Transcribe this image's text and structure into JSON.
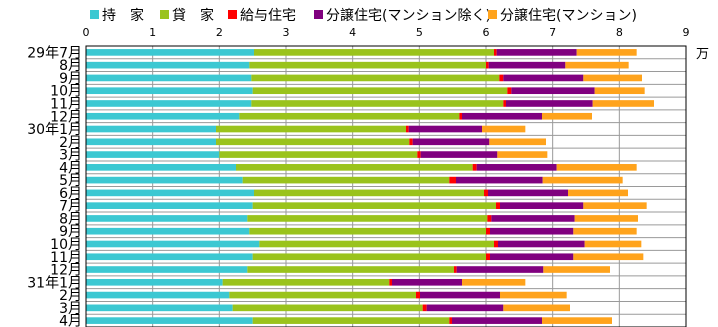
{
  "title": "",
  "unit": "万",
  "legend": [
    {
      "name": "持　家",
      "color": "#3cc8d2"
    },
    {
      "name": "貸　家",
      "color": "#9ac31c"
    },
    {
      "name": "給与住宅",
      "color": "#ff0000"
    },
    {
      "name": "分譲住宅(マンション除く)",
      "color": "#80007f"
    },
    {
      "name": "分譲住宅(マンション)",
      "color": "#ffa31c"
    }
  ],
  "chart_data": {
    "type": "bar",
    "orientation": "horizontal",
    "stacked": true,
    "xlim": [
      0,
      9
    ],
    "xticks": [
      0,
      1,
      2,
      3,
      4,
      5,
      6,
      7,
      8,
      9
    ],
    "grid": true,
    "categories": [
      "29年7月",
      "8月",
      "9月",
      "10月",
      "11月",
      "12月",
      "30年1月",
      "2月",
      "3月",
      "4月",
      "5月",
      "6月",
      "7月",
      "8月",
      "9月",
      "10月",
      "11月",
      "12月",
      "31年1月",
      "2月",
      "3月",
      "4月"
    ],
    "series": [
      {
        "name": "持　家",
        "values": [
          2.52,
          2.45,
          2.48,
          2.5,
          2.48,
          2.3,
          1.95,
          1.95,
          2.0,
          2.25,
          2.35,
          2.52,
          2.5,
          2.42,
          2.45,
          2.6,
          2.5,
          2.42,
          2.05,
          2.15,
          2.2,
          2.5
        ]
      },
      {
        "name": "貸　家",
        "values": [
          3.6,
          3.55,
          3.72,
          3.82,
          3.78,
          3.3,
          2.85,
          2.9,
          2.97,
          3.55,
          3.1,
          3.45,
          3.65,
          3.6,
          3.55,
          3.52,
          3.5,
          3.1,
          2.5,
          2.8,
          2.85,
          2.95
        ]
      },
      {
        "name": "給与住宅",
        "values": [
          0.04,
          0.04,
          0.06,
          0.06,
          0.04,
          0.04,
          0.04,
          0.05,
          0.05,
          0.06,
          0.1,
          0.06,
          0.06,
          0.06,
          0.06,
          0.06,
          0.06,
          0.04,
          0.04,
          0.06,
          0.06,
          0.04
        ]
      },
      {
        "name": "分譲住宅(マンション除く)",
        "values": [
          1.2,
          1.15,
          1.2,
          1.25,
          1.3,
          1.2,
          1.1,
          1.15,
          1.15,
          1.2,
          1.3,
          1.2,
          1.25,
          1.25,
          1.25,
          1.3,
          1.25,
          1.3,
          1.05,
          1.2,
          1.15,
          1.35
        ]
      },
      {
        "name": "分譲住宅(マンション)",
        "values": [
          0.9,
          0.95,
          0.88,
          0.75,
          0.92,
          0.75,
          0.65,
          0.85,
          0.75,
          1.2,
          1.2,
          0.9,
          0.95,
          0.95,
          0.95,
          0.85,
          1.05,
          1.0,
          0.95,
          1.0,
          1.0,
          1.05
        ]
      }
    ]
  }
}
